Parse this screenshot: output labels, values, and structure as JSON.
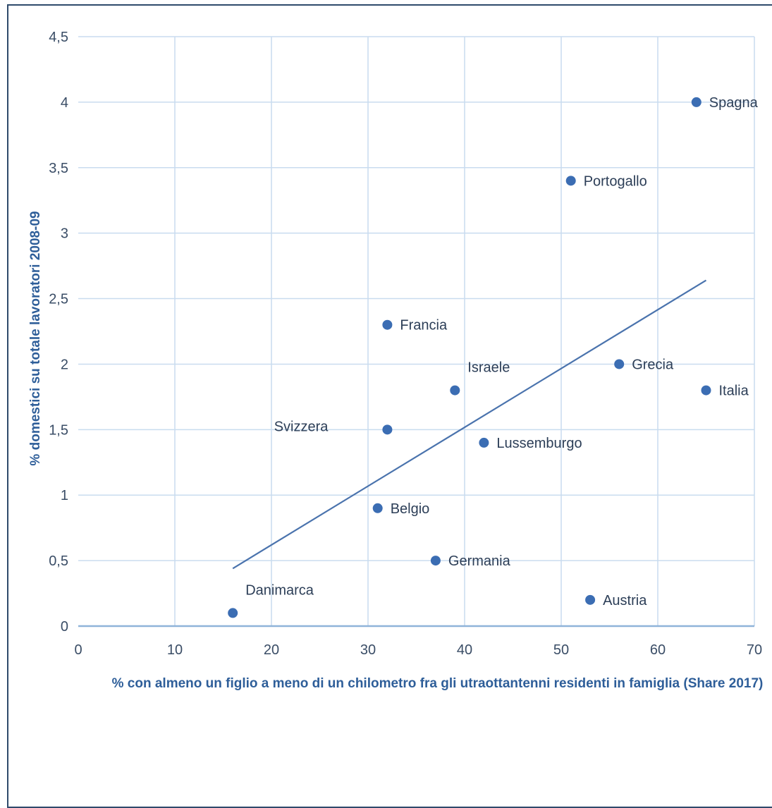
{
  "chart_data": {
    "type": "scatter",
    "title": "",
    "xlabel": "% con almeno un figlio a meno di un chilometro fra gli utraottantenni residenti in famiglia (Share 2017)",
    "ylabel": "% domestici su totale lavoratori 2008-09",
    "xlim": [
      0,
      70
    ],
    "ylim": [
      0,
      4.5
    ],
    "x_ticks": [
      0,
      10,
      20,
      30,
      40,
      50,
      60,
      70
    ],
    "x_tick_labels": [
      "0",
      "10",
      "20",
      "30",
      "40",
      "50",
      "60",
      "70"
    ],
    "y_ticks": [
      0,
      0.5,
      1,
      1.5,
      2,
      2.5,
      3,
      3.5,
      4,
      4.5
    ],
    "y_tick_labels": [
      "0",
      "0,5",
      "1",
      "1,5",
      "2",
      "2,5",
      "3",
      "3,5",
      "4",
      "4,5"
    ],
    "grid": true,
    "points": [
      {
        "label": "Spagna",
        "x": 64,
        "y": 4.0,
        "label_pos": "right"
      },
      {
        "label": "Portogallo",
        "x": 51,
        "y": 3.4,
        "label_pos": "right"
      },
      {
        "label": "Francia",
        "x": 32,
        "y": 2.3,
        "label_pos": "right"
      },
      {
        "label": "Grecia",
        "x": 56,
        "y": 2.0,
        "label_pos": "right"
      },
      {
        "label": "Israele",
        "x": 39,
        "y": 1.8,
        "label_pos": "above-right"
      },
      {
        "label": "Italia",
        "x": 65,
        "y": 1.8,
        "label_pos": "right"
      },
      {
        "label": "Svizzera",
        "x": 32,
        "y": 1.5,
        "label_pos": "left"
      },
      {
        "label": "Lussemburgo",
        "x": 42,
        "y": 1.4,
        "label_pos": "right"
      },
      {
        "label": "Belgio",
        "x": 31,
        "y": 0.9,
        "label_pos": "right"
      },
      {
        "label": "Germania",
        "x": 37,
        "y": 0.5,
        "label_pos": "right"
      },
      {
        "label": "Danimarca",
        "x": 16,
        "y": 0.1,
        "label_pos": "above-right"
      },
      {
        "label": "Austria",
        "x": 53,
        "y": 0.2,
        "label_pos": "right"
      }
    ],
    "trendline": {
      "x": [
        16,
        65
      ],
      "y": [
        0.44,
        2.64
      ]
    },
    "colors": {
      "marker": "#3b6db3",
      "trendline": "#4a73ad",
      "grid": "#c9dcef",
      "axis": "#8fb3d9"
    }
  }
}
